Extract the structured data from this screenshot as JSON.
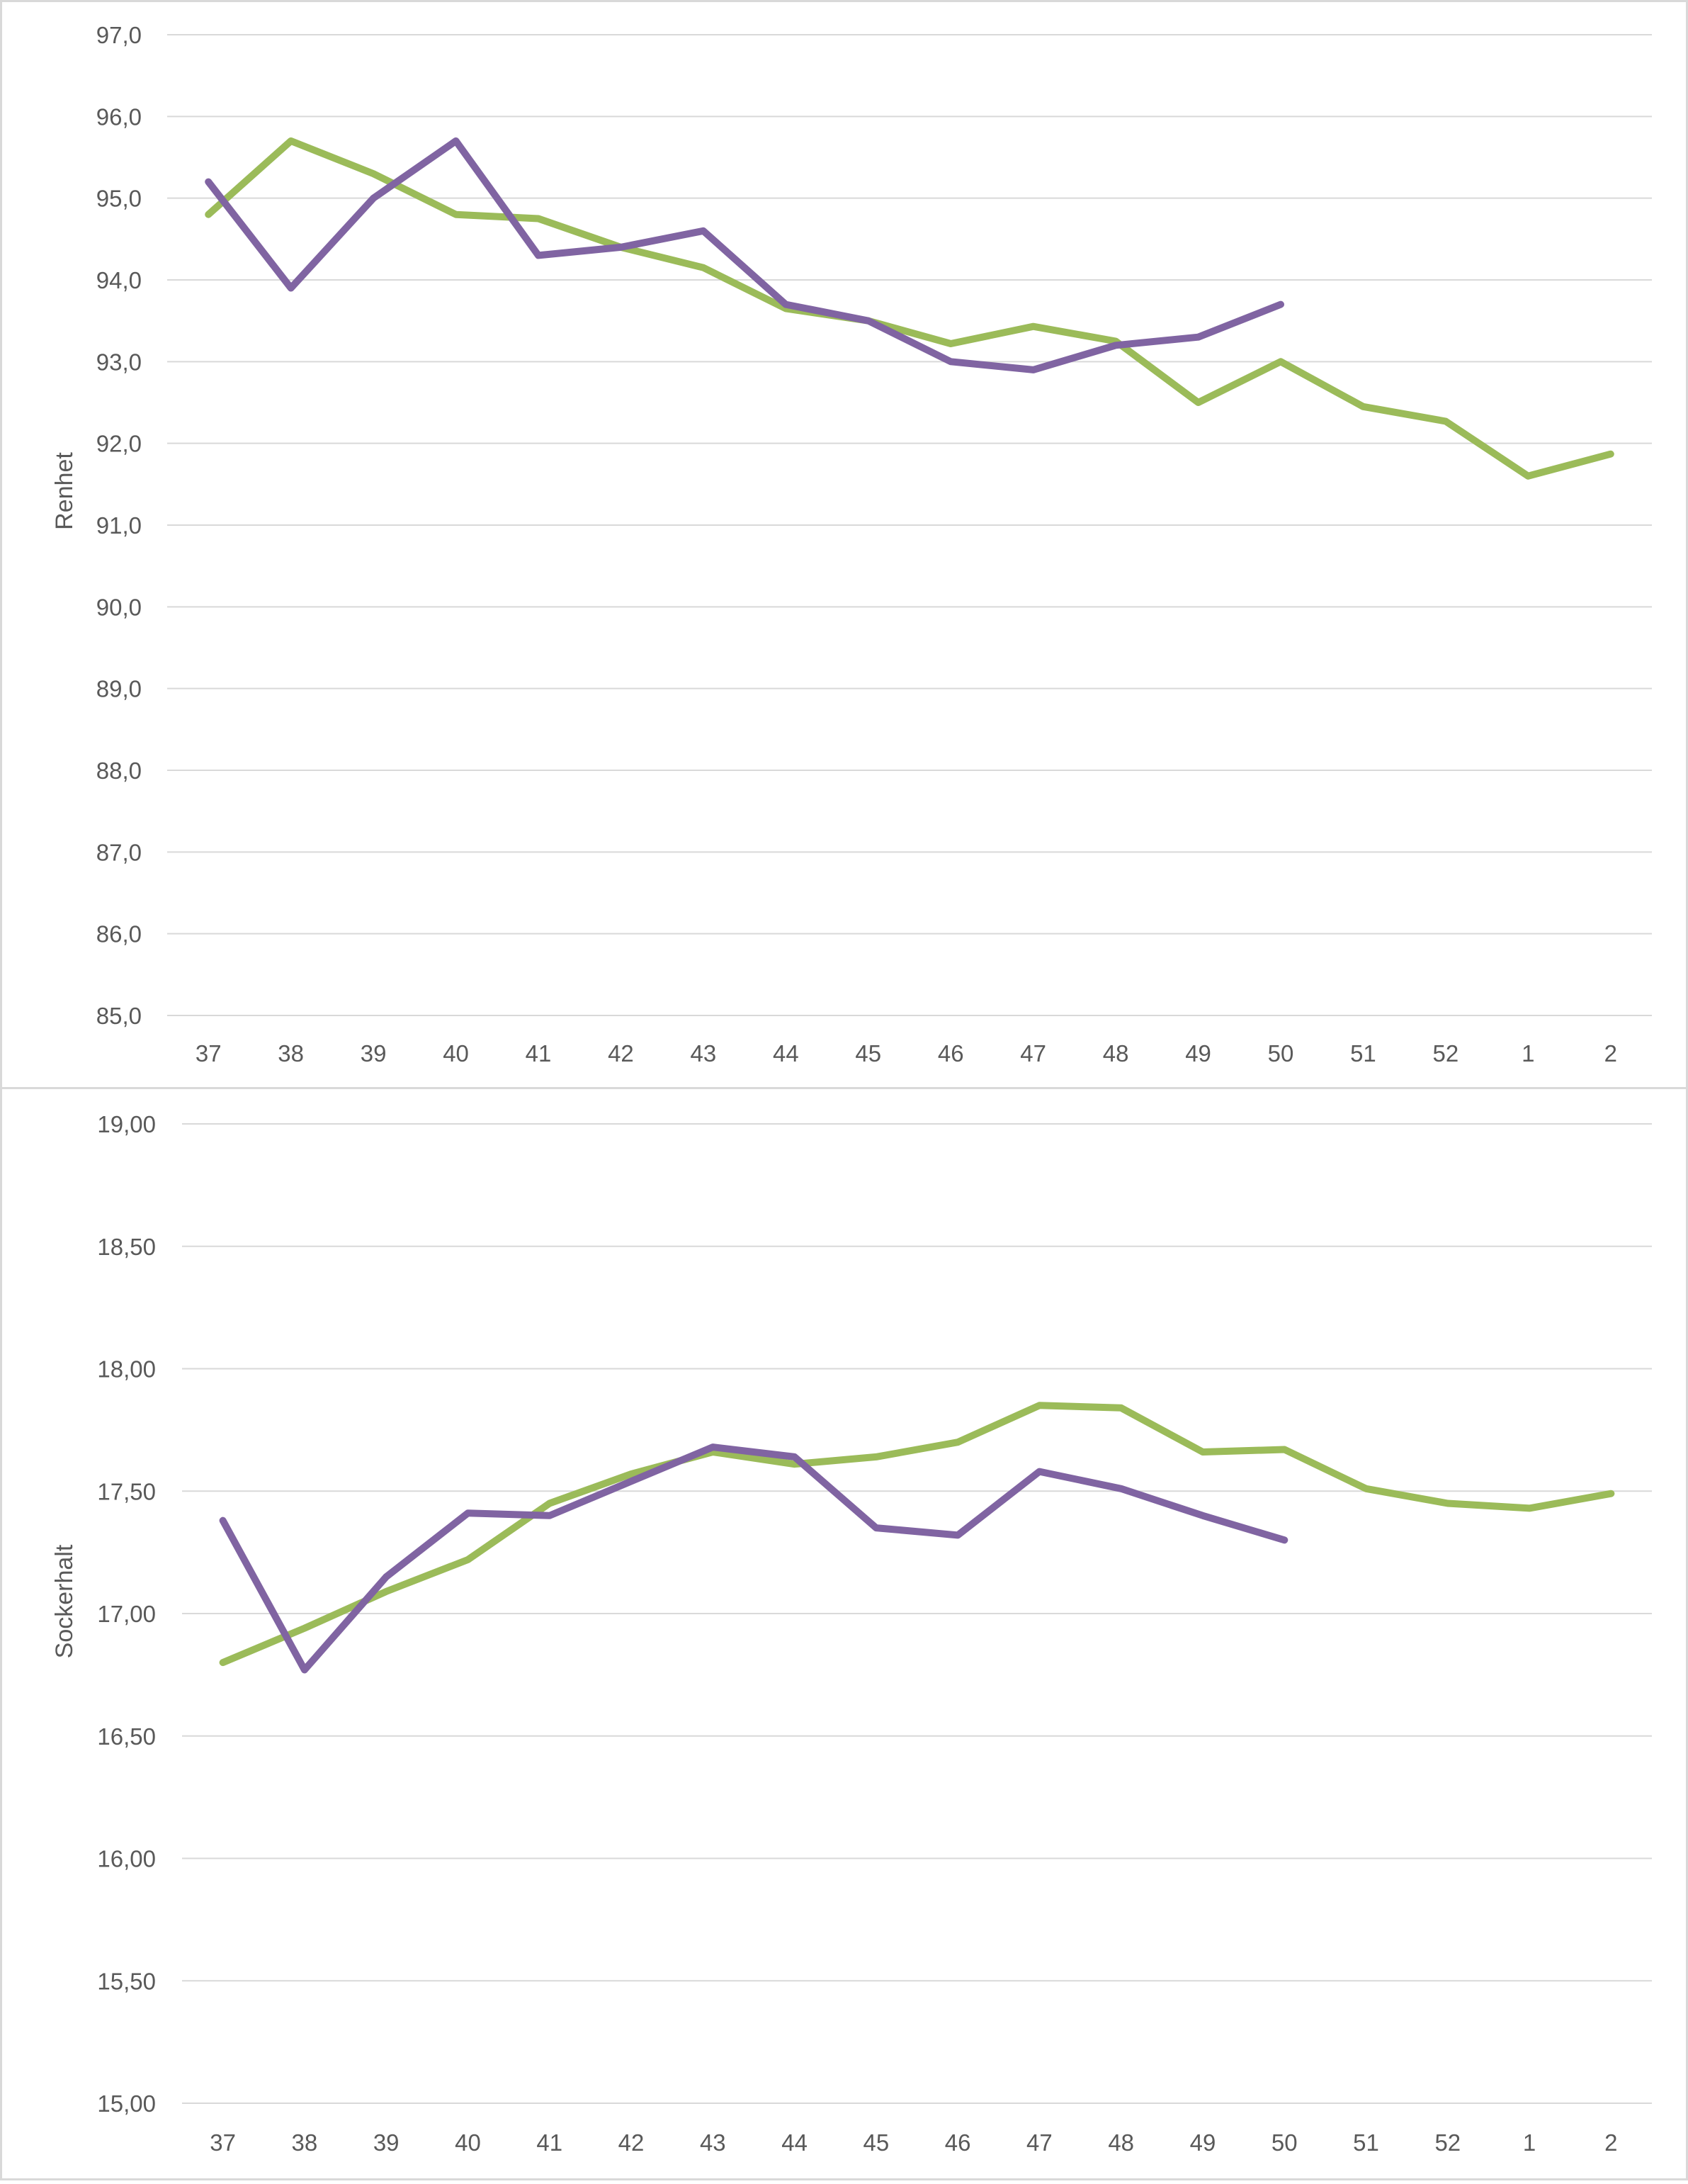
{
  "colors": {
    "series_a": "#9BBB59",
    "series_b": "#8064A2",
    "grid": "#D9D9D9"
  },
  "chart_data": [
    {
      "type": "line",
      "ylabel": "Renhet",
      "xlabel": "",
      "categories": [
        "37",
        "38",
        "39",
        "40",
        "41",
        "42",
        "43",
        "44",
        "45",
        "46",
        "47",
        "48",
        "49",
        "50",
        "51",
        "52",
        "1",
        "2"
      ],
      "ylim": [
        85,
        97
      ],
      "ytick_step": 1,
      "ytick_labels": [
        "85,0",
        "86,0",
        "87,0",
        "88,0",
        "89,0",
        "90,0",
        "91,0",
        "92,0",
        "93,0",
        "94,0",
        "95,0",
        "96,0",
        "97,0"
      ],
      "grid": true,
      "legend": "none",
      "series": [
        {
          "color": "#9BBB59",
          "values": [
            94.8,
            95.7,
            95.3,
            94.8,
            94.75,
            94.4,
            94.15,
            93.65,
            93.5,
            93.22,
            93.43,
            93.25,
            92.5,
            93.0,
            92.45,
            92.27,
            91.6,
            91.87
          ]
        },
        {
          "color": "#8064A2",
          "values": [
            95.2,
            93.9,
            95.0,
            95.7,
            94.3,
            94.4,
            94.6,
            93.7,
            93.5,
            93.0,
            92.9,
            93.2,
            93.3,
            93.7,
            null,
            null,
            null,
            null
          ]
        }
      ]
    },
    {
      "type": "line",
      "ylabel": "Sockerhalt",
      "xlabel": "",
      "categories": [
        "37",
        "38",
        "39",
        "40",
        "41",
        "42",
        "43",
        "44",
        "45",
        "46",
        "47",
        "48",
        "49",
        "50",
        "51",
        "52",
        "1",
        "2"
      ],
      "ylim": [
        15,
        19
      ],
      "ytick_step": 0.5,
      "ytick_labels": [
        "15,00",
        "15,50",
        "16,00",
        "16,50",
        "17,00",
        "17,50",
        "18,00",
        "18,50",
        "19,00"
      ],
      "grid": true,
      "legend": "none",
      "series": [
        {
          "color": "#9BBB59",
          "values": [
            16.8,
            16.94,
            17.09,
            17.22,
            17.45,
            17.57,
            17.66,
            17.61,
            17.64,
            17.7,
            17.85,
            17.84,
            17.66,
            17.67,
            17.51,
            17.45,
            17.43,
            17.49
          ]
        },
        {
          "color": "#8064A2",
          "values": [
            17.38,
            16.77,
            17.15,
            17.41,
            17.4,
            17.54,
            17.68,
            17.64,
            17.35,
            17.32,
            17.58,
            17.51,
            17.4,
            17.3,
            null,
            null,
            null,
            null
          ]
        }
      ]
    }
  ]
}
